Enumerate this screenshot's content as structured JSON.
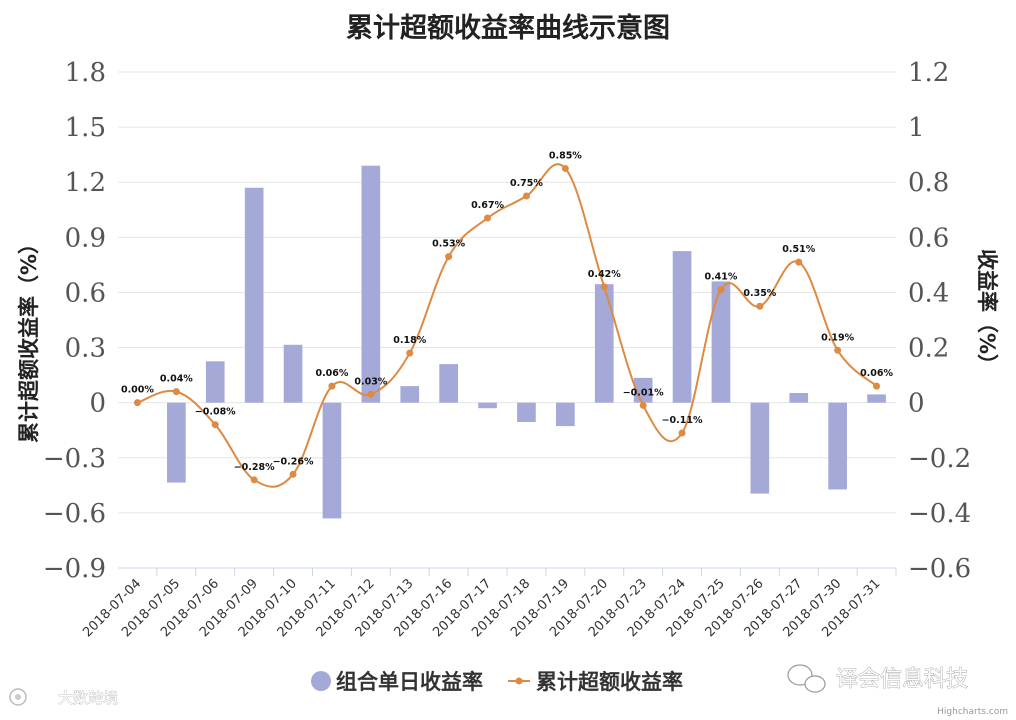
{
  "chart_data": {
    "type": "bar+line",
    "title": "累计超额收益率曲线示意图",
    "ylabel_left": "累计超额收益率（%）",
    "ylabel_right": "收益率（%）",
    "ylim_left": [
      -0.9,
      1.8
    ],
    "ylim_right": [
      -0.6,
      1.2
    ],
    "yticks_left": [
      "1.8",
      "1.5",
      "1.2",
      "0.9",
      "0.6",
      "0.3",
      "0",
      "−0.3",
      "−0.6",
      "−0.9"
    ],
    "yticks_right": [
      "1.2",
      "1",
      "0.8",
      "0.6",
      "0.4",
      "0.2",
      "0",
      "−0.2",
      "−0.4",
      "−0.6"
    ],
    "grid": true,
    "legend_position": "bottom-center",
    "categories": [
      "2018-07-04",
      "2018-07-05",
      "2018-07-06",
      "2018-07-09",
      "2018-07-10",
      "2018-07-11",
      "2018-07-12",
      "2018-07-13",
      "2018-07-16",
      "2018-07-17",
      "2018-07-18",
      "2018-07-19",
      "2018-07-20",
      "2018-07-23",
      "2018-07-24",
      "2018-07-25",
      "2018-07-26",
      "2018-07-27",
      "2018-07-30",
      "2018-07-31"
    ],
    "series": [
      {
        "name": "组合单日收益率",
        "type": "bar",
        "axis": "right",
        "color": "#a4a9d7",
        "values": [
          0,
          -0.29,
          0.15,
          0.78,
          0.21,
          -0.42,
          0.86,
          0.06,
          0.14,
          -0.02,
          -0.07,
          -0.085,
          0.43,
          0.09,
          0.55,
          0.44,
          -0.33,
          0.035,
          -0.315,
          0.03
        ]
      },
      {
        "name": "累计超额收益率",
        "type": "line",
        "axis": "right",
        "color": "#dd8a43",
        "values": [
          0.0,
          0.04,
          -0.08,
          -0.28,
          -0.26,
          0.06,
          0.03,
          0.18,
          0.53,
          0.67,
          0.75,
          0.85,
          0.42,
          -0.01,
          -0.11,
          0.41,
          0.35,
          0.51,
          0.19,
          0.06
        ],
        "labels": [
          "0.00%",
          "0.04%",
          "−0.08%",
          "−0.28%",
          "−0.26%",
          "0.06%",
          "0.03%",
          "0.18%",
          "0.53%",
          "0.67%",
          "0.75%",
          "0.85%",
          "0.42%",
          "−0.01%",
          "−0.11%",
          "0.41%",
          "0.35%",
          "0.51%",
          "0.19%",
          "0.06%"
        ]
      }
    ]
  },
  "watermark": {
    "left_text": "大数跨境",
    "right_text": "译会信息科技",
    "credit": "Highcharts.com"
  }
}
